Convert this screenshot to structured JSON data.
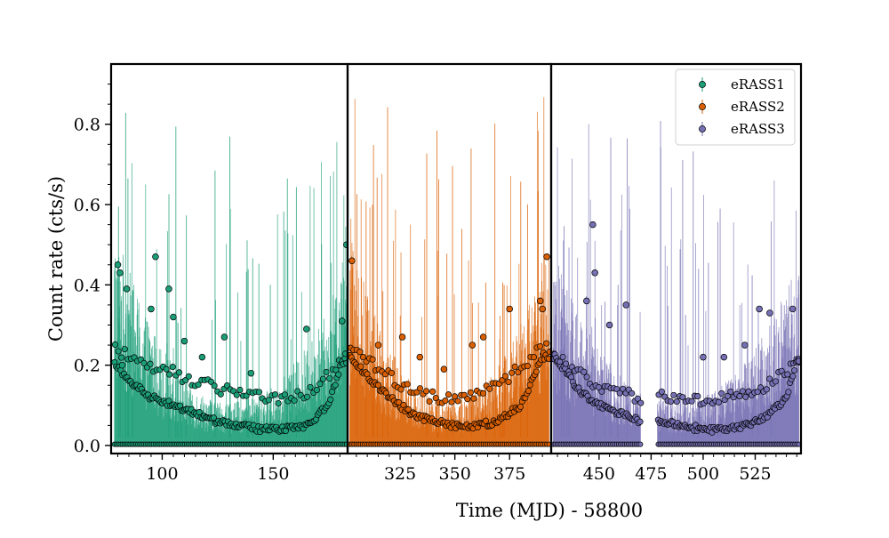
{
  "chart_data": {
    "type": "scatter",
    "xlabel": "Time (MJD) - 58800",
    "ylabel": "Count rate (cts/s)",
    "ylim": [
      -0.02,
      0.95
    ],
    "y_ticks": [
      "0.0",
      "0.2",
      "0.4",
      "0.6",
      "0.8"
    ],
    "y_tick_values": [
      0.0,
      0.2,
      0.4,
      0.6,
      0.8
    ],
    "grid": false,
    "legend_position": "top-right",
    "error_bars": true,
    "series": [
      {
        "name": "eRASS1",
        "color": "#1b9e77",
        "xlim": [
          77,
          183.5
        ],
        "x_ticks": [
          "100",
          "150"
        ],
        "x_tick_values": [
          100,
          150
        ],
        "x_range": [
          78.5,
          183
        ],
        "baseline_point_count": 120,
        "envelope_min": 0.05,
        "envelope_edge_left": 0.25,
        "envelope_edge_right": 0.21,
        "samples_x": [
          79,
          85,
          95,
          105,
          115,
          125,
          135,
          145,
          155,
          165,
          175,
          181
        ],
        "samples_lower_track_y": [
          0.2,
          0.16,
          0.12,
          0.1,
          0.08,
          0.06,
          0.05,
          0.04,
          0.04,
          0.05,
          0.1,
          0.21
        ],
        "samples_upper_track_y": [
          0.24,
          0.22,
          0.2,
          0.18,
          0.16,
          0.14,
          0.13,
          0.12,
          0.12,
          0.13,
          0.18,
          0.22
        ],
        "notable_points": [
          {
            "x": 80,
            "y": 0.45
          },
          {
            "x": 81,
            "y": 0.43
          },
          {
            "x": 82,
            "y": 0.2
          },
          {
            "x": 84,
            "y": 0.39
          },
          {
            "x": 97,
            "y": 0.47
          },
          {
            "x": 95,
            "y": 0.34
          },
          {
            "x": 103,
            "y": 0.39
          },
          {
            "x": 105,
            "y": 0.32
          },
          {
            "x": 128,
            "y": 0.27
          },
          {
            "x": 165,
            "y": 0.29
          },
          {
            "x": 181,
            "y": 0.31
          },
          {
            "x": 183,
            "y": 0.5
          },
          {
            "x": 110,
            "y": 0.26
          },
          {
            "x": 118,
            "y": 0.22
          },
          {
            "x": 140,
            "y": 0.18
          }
        ]
      },
      {
        "name": "eRASS2",
        "color": "#d95f02",
        "xlim": [
          301,
          394
        ],
        "x_ticks": [
          "325",
          "350",
          "375"
        ],
        "x_tick_values": [
          325,
          350,
          375
        ],
        "x_range": [
          302,
          393
        ],
        "baseline_point_count": 95,
        "envelope_min": 0.05,
        "envelope_edge_left": 0.24,
        "envelope_edge_right": 0.24,
        "samples_x": [
          303,
          310,
          320,
          330,
          340,
          350,
          360,
          370,
          380,
          390
        ],
        "samples_lower_track_y": [
          0.22,
          0.17,
          0.12,
          0.08,
          0.06,
          0.05,
          0.05,
          0.06,
          0.1,
          0.22
        ],
        "samples_upper_track_y": [
          0.24,
          0.21,
          0.17,
          0.14,
          0.12,
          0.12,
          0.13,
          0.15,
          0.2,
          0.24
        ],
        "notable_points": [
          {
            "x": 303,
            "y": 0.46
          },
          {
            "x": 315,
            "y": 0.25
          },
          {
            "x": 326,
            "y": 0.27
          },
          {
            "x": 358,
            "y": 0.25
          },
          {
            "x": 363,
            "y": 0.27
          },
          {
            "x": 375,
            "y": 0.34
          },
          {
            "x": 389,
            "y": 0.36
          },
          {
            "x": 390,
            "y": 0.34
          },
          {
            "x": 392,
            "y": 0.47
          },
          {
            "x": 345,
            "y": 0.19
          },
          {
            "x": 334,
            "y": 0.22
          }
        ]
      },
      {
        "name": "eRASS3",
        "color": "#7570b3",
        "xlim": [
          427,
          547
        ],
        "x_ticks": [
          "450",
          "475",
          "500",
          "525"
        ],
        "x_tick_values": [
          450,
          475,
          500,
          525
        ],
        "x_range": [
          428,
          546
        ],
        "baseline_point_count": 125,
        "gap": [
          470,
          478
        ],
        "envelope_min": 0.05,
        "envelope_edge_left": 0.22,
        "envelope_edge_right": 0.21,
        "samples_x": [
          429,
          440,
          450,
          460,
          470,
          480,
          490,
          500,
          510,
          520,
          530,
          540,
          545
        ],
        "samples_lower_track_y": [
          0.22,
          0.14,
          0.1,
          0.08,
          0.06,
          0.06,
          0.05,
          0.04,
          0.04,
          0.05,
          0.07,
          0.12,
          0.21
        ],
        "samples_upper_track_y": [
          0.22,
          0.18,
          0.15,
          0.13,
          0.12,
          0.12,
          0.11,
          0.11,
          0.12,
          0.13,
          0.15,
          0.19,
          0.21
        ],
        "notable_points": [
          {
            "x": 444,
            "y": 0.36
          },
          {
            "x": 447,
            "y": 0.55
          },
          {
            "x": 448,
            "y": 0.43
          },
          {
            "x": 455,
            "y": 0.3
          },
          {
            "x": 463,
            "y": 0.35
          },
          {
            "x": 510,
            "y": 0.22
          },
          {
            "x": 527,
            "y": 0.34
          },
          {
            "x": 532,
            "y": 0.33
          },
          {
            "x": 543,
            "y": 0.34
          },
          {
            "x": 546,
            "y": 0.21
          },
          {
            "x": 520,
            "y": 0.25
          },
          {
            "x": 500,
            "y": 0.22
          }
        ]
      }
    ]
  }
}
